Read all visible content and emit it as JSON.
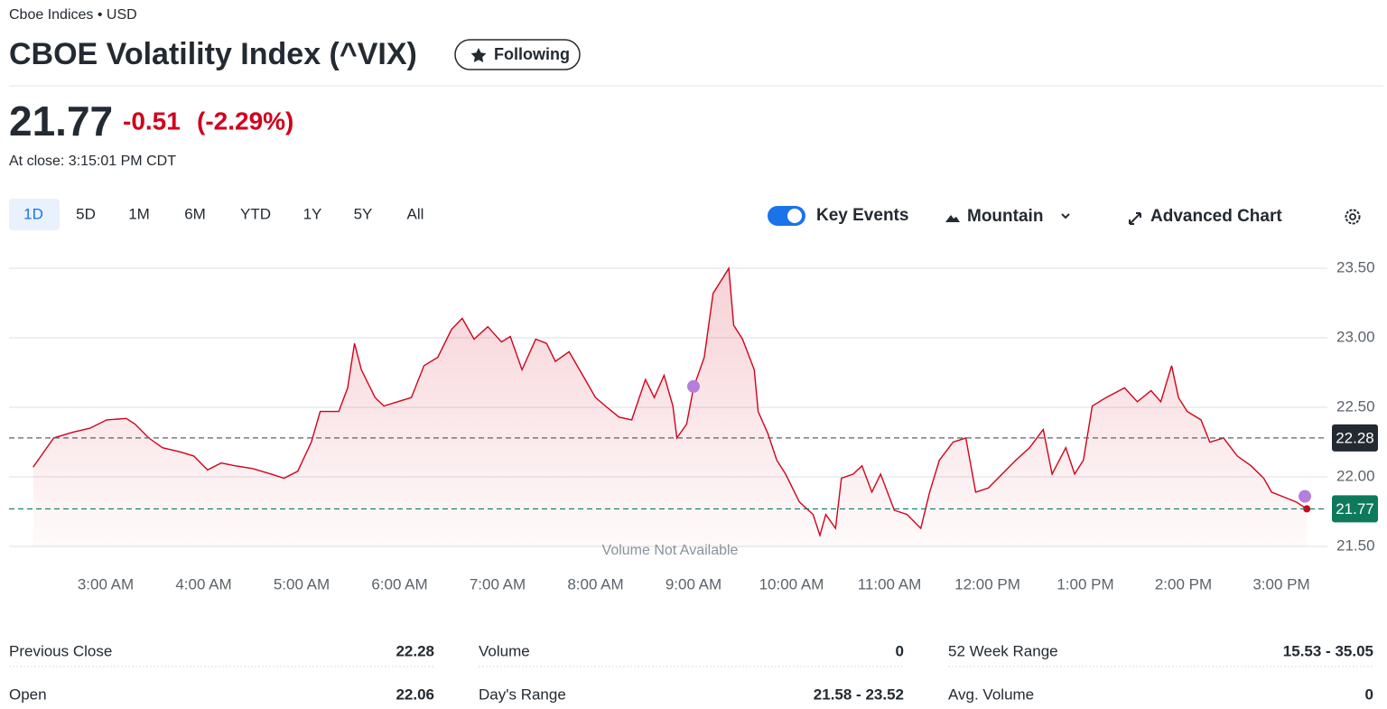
{
  "header": {
    "exchange": "Cboe Indices • USD",
    "title": "CBOE Volatility Index (^VIX)",
    "follow_button": "Following",
    "price": "21.77",
    "change": "-0.51",
    "change_percent": "(-2.29%)",
    "close_time": "At close: 3:15:01 PM CDT"
  },
  "ranges": [
    "1D",
    "5D",
    "1M",
    "6M",
    "YTD",
    "1Y",
    "5Y",
    "All"
  ],
  "toolbar": {
    "key_events": "Key Events",
    "chart_type": "Mountain",
    "advanced": "Advanced Chart"
  },
  "chart_data": {
    "type": "area",
    "annotation": "Volume Not Available",
    "color": "#d0021b",
    "x": [
      2.26,
      2.34,
      2.47,
      2.66,
      2.84,
      3.01,
      3.21,
      3.3,
      3.44,
      3.58,
      3.76,
      3.9,
      4.04,
      4.18,
      4.32,
      4.5,
      4.69,
      4.82,
      4.96,
      5.1,
      5.19,
      5.38,
      5.47,
      5.54,
      5.61,
      5.75,
      5.84,
      5.98,
      6.12,
      6.25,
      6.39,
      6.53,
      6.64,
      6.76,
      6.9,
      7.04,
      7.13,
      7.25,
      7.39,
      7.5,
      7.59,
      7.73,
      7.87,
      8.0,
      8.1,
      8.24,
      8.37,
      8.51,
      8.6,
      8.7,
      8.79,
      8.83,
      8.93,
      9.0,
      9.11,
      9.2,
      9.29,
      9.36,
      9.41,
      9.5,
      9.62,
      9.66,
      9.76,
      9.85,
      9.94,
      10.08,
      10.22,
      10.29,
      10.35,
      10.45,
      10.51,
      10.63,
      10.72,
      10.82,
      10.91,
      11.05,
      11.18,
      11.32,
      11.41,
      11.51,
      11.65,
      11.78,
      11.88,
      12.01,
      12.15,
      12.29,
      12.43,
      12.57,
      12.66,
      12.8,
      12.89,
      12.98,
      13.07,
      13.21,
      13.4,
      13.53,
      13.67,
      13.77,
      13.88,
      13.95,
      14.04,
      14.18,
      14.27,
      14.41,
      14.55,
      14.69,
      14.82,
      14.9,
      15.01,
      15.15,
      15.26
    ],
    "values": [
      22.07,
      22.15,
      22.28,
      22.32,
      22.35,
      22.41,
      22.42,
      22.38,
      22.28,
      22.21,
      22.18,
      22.15,
      22.05,
      22.1,
      22.08,
      22.06,
      22.02,
      21.99,
      22.04,
      22.25,
      22.47,
      22.47,
      22.64,
      22.96,
      22.77,
      22.57,
      22.51,
      22.54,
      22.57,
      22.8,
      22.86,
      23.06,
      23.14,
      22.99,
      23.08,
      22.97,
      23.01,
      22.77,
      22.99,
      22.96,
      22.83,
      22.9,
      22.73,
      22.57,
      22.51,
      22.43,
      22.41,
      22.7,
      22.57,
      22.73,
      22.51,
      22.28,
      22.38,
      22.64,
      22.86,
      23.32,
      23.42,
      23.5,
      23.09,
      22.99,
      22.77,
      22.47,
      22.31,
      22.12,
      22.02,
      21.82,
      21.73,
      21.58,
      21.73,
      21.63,
      21.99,
      22.02,
      22.08,
      21.89,
      22.02,
      21.76,
      21.73,
      21.63,
      21.89,
      22.12,
      22.25,
      22.28,
      21.89,
      21.92,
      22.02,
      22.12,
      22.21,
      22.34,
      22.02,
      22.21,
      22.02,
      22.12,
      22.51,
      22.57,
      22.64,
      22.54,
      22.62,
      22.54,
      22.8,
      22.57,
      22.47,
      22.41,
      22.25,
      22.28,
      22.15,
      22.08,
      21.99,
      21.89,
      21.86,
      21.82,
      21.77
    ],
    "xlim": [
      2,
      15.5
    ],
    "ylim": [
      21.4,
      23.6
    ],
    "xticks": [
      {
        "value": 3,
        "label": "3:00 AM"
      },
      {
        "value": 4,
        "label": "4:00 AM"
      },
      {
        "value": 5,
        "label": "5:00 AM"
      },
      {
        "value": 6,
        "label": "6:00 AM"
      },
      {
        "value": 7,
        "label": "7:00 AM"
      },
      {
        "value": 8,
        "label": "8:00 AM"
      },
      {
        "value": 9,
        "label": "9:00 AM"
      },
      {
        "value": 10,
        "label": "10:00 AM"
      },
      {
        "value": 11,
        "label": "11:00 AM"
      },
      {
        "value": 12,
        "label": "12:00 PM"
      },
      {
        "value": 13,
        "label": "1:00 PM"
      },
      {
        "value": 14,
        "label": "2:00 PM"
      },
      {
        "value": 15,
        "label": "3:00 PM"
      }
    ],
    "yticks": [
      {
        "value": 21.5,
        "label": "21.50"
      },
      {
        "value": 22,
        "label": "22.00"
      },
      {
        "value": 22.5,
        "label": "22.50"
      },
      {
        "value": 23,
        "label": "23.00"
      },
      {
        "value": 23.5,
        "label": "23.50"
      }
    ],
    "grid": true,
    "reference_lines": [
      {
        "value": 22.28,
        "color": "#5b636a"
      },
      {
        "value": 21.77,
        "color": "#0d7a5b"
      }
    ],
    "events": [
      {
        "x": 9.0,
        "y": 22.65
      },
      {
        "x": 15.24,
        "y": 21.86
      }
    ],
    "event_color": "#b57edc"
  },
  "stats": [
    [
      {
        "label": "Previous Close",
        "value": "22.28"
      },
      {
        "label": "Volume",
        "value": "0"
      },
      {
        "label": "52 Week Range",
        "value": "15.53 - 35.05"
      }
    ],
    [
      {
        "label": "Open",
        "value": "22.06"
      },
      {
        "label": "Day's Range",
        "value": "21.58 - 23.52"
      },
      {
        "label": "Avg. Volume",
        "value": "0"
      }
    ]
  ]
}
